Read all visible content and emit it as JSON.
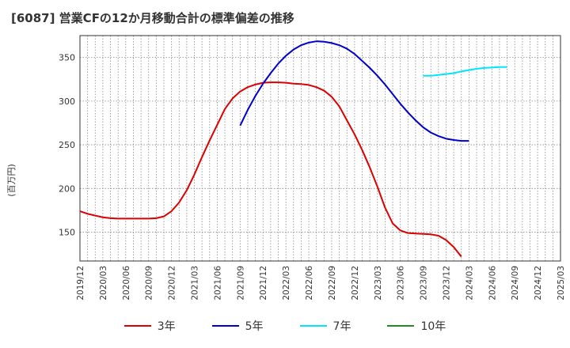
{
  "chart_data": {
    "type": "line",
    "title": "[6087]  営業CFの12か月移動合計の標準偏差の推移",
    "ylabel": "(百万円)",
    "xlabel": "",
    "ylim": [
      117,
      375
    ],
    "y_ticks": [
      150,
      200,
      250,
      300,
      350
    ],
    "x_tick_labels": [
      "2019/12",
      "2020/03",
      "2020/06",
      "2020/09",
      "2020/12",
      "2021/03",
      "2021/06",
      "2021/09",
      "2021/12",
      "2022/03",
      "2022/06",
      "2022/09",
      "2022/12",
      "2023/03",
      "2023/06",
      "2023/09",
      "2023/12",
      "2024/03",
      "2024/06",
      "2024/09",
      "2024/12",
      "2025/03"
    ],
    "grid": true,
    "legend_position": "bottom",
    "series": [
      {
        "name": "3年",
        "color": "#dd0000",
        "start_index": 0,
        "values": [
          174,
          171,
          169,
          167,
          166,
          165.5,
          165.5,
          165.5,
          165.5,
          165.5,
          166,
          168,
          174,
          184,
          198,
          216,
          236,
          255,
          273,
          291,
          303,
          311,
          316,
          319,
          321,
          321.5,
          321.5,
          321,
          320,
          319.5,
          318.5,
          316,
          312,
          305,
          294,
          278,
          262,
          244,
          224,
          202,
          178,
          160,
          152,
          149,
          148.5,
          148,
          147.5,
          146,
          141,
          133,
          122
        ]
      },
      {
        "name": "5年",
        "color": "#0000cc",
        "start_index": 21,
        "values": [
          272,
          290,
          306,
          320,
          332,
          343,
          352,
          359,
          364,
          367,
          368.5,
          368,
          366.5,
          364,
          360,
          354,
          346,
          338,
          329,
          319,
          308,
          297,
          287,
          278,
          270,
          264,
          260,
          257,
          255.5,
          254.5,
          254.5
        ]
      },
      {
        "name": "7年",
        "color": "#00e5ff",
        "start_index": 45,
        "values": [
          329,
          329,
          330,
          331,
          332,
          334,
          335.5,
          337,
          338,
          338.5,
          339,
          339
        ]
      },
      {
        "name": "10年",
        "color": "#228B22",
        "start_index": 0,
        "values": []
      }
    ]
  }
}
